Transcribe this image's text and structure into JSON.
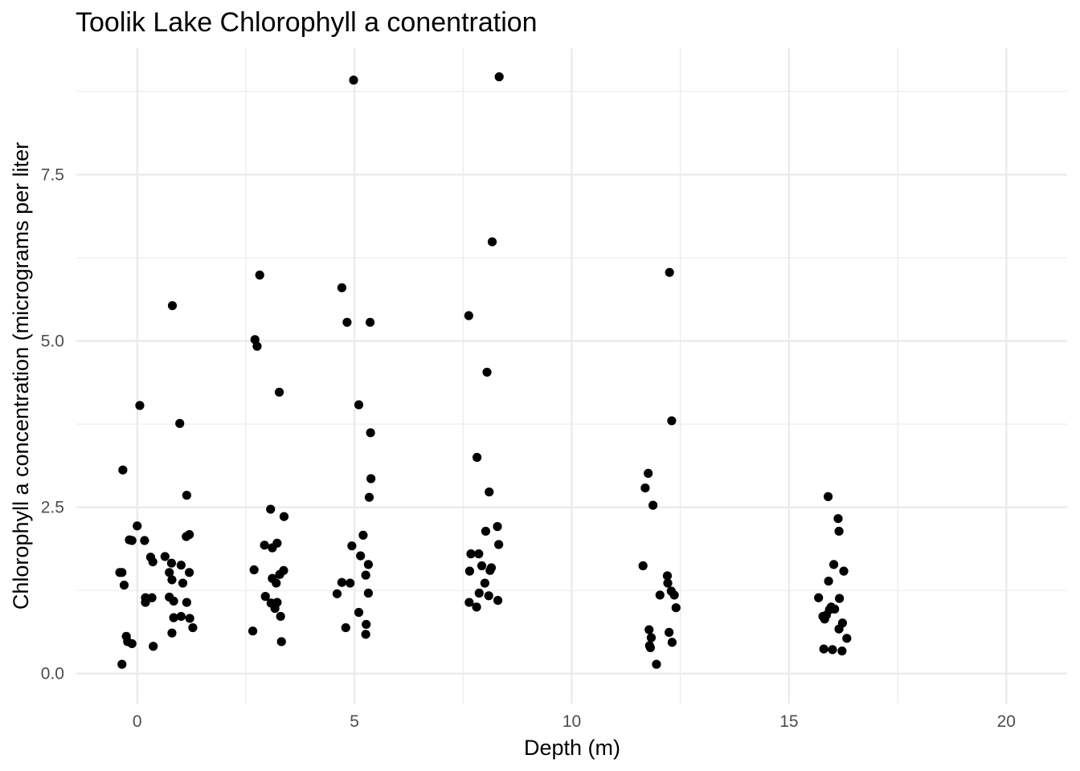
{
  "chart_data": {
    "type": "scatter",
    "title": "Toolik Lake Chlorophyll a conentration",
    "xlabel": "Depth (m)",
    "ylabel": "Chlorophyll a concentration (micrograms per liter",
    "xlim": [
      -1.4,
      21.4
    ],
    "ylim": [
      -0.45,
      9.4
    ],
    "x_ticks": [
      0,
      5,
      10,
      15,
      20
    ],
    "x_tick_labels": [
      "0",
      "5",
      "10",
      "15",
      "20"
    ],
    "y_ticks": [
      0,
      2.5,
      5,
      7.5
    ],
    "y_tick_labels": [
      "0.0",
      "2.5",
      "5.0",
      "7.5"
    ],
    "x_minor": [
      2.5,
      7.5,
      12.5,
      17.5
    ],
    "y_minor": [
      1.25,
      3.75,
      6.25,
      8.75
    ],
    "grid": true,
    "legend": "none",
    "point_color": "#000000",
    "grid_color": "#ebebeb",
    "points": [
      [
        -0.35,
        1.52
      ],
      [
        -0.3,
        1.33
      ],
      [
        -0.4,
        1.52
      ],
      [
        -0.33,
        3.06
      ],
      [
        -0.35,
        0.14
      ],
      [
        -0.25,
        0.56
      ],
      [
        -0.22,
        0.48
      ],
      [
        -0.18,
        2.01
      ],
      [
        -0.12,
        2.0
      ],
      [
        -0.12,
        0.45
      ],
      [
        0.0,
        2.22
      ],
      [
        0.06,
        4.03
      ],
      [
        0.17,
        2.0
      ],
      [
        0.19,
        1.14
      ],
      [
        0.19,
        1.07
      ],
      [
        0.31,
        1.75
      ],
      [
        0.34,
        1.14
      ],
      [
        0.36,
        1.68
      ],
      [
        0.37,
        0.41
      ],
      [
        0.64,
        1.76
      ],
      [
        0.74,
        1.15
      ],
      [
        0.74,
        1.52
      ],
      [
        0.79,
        1.66
      ],
      [
        0.8,
        1.41
      ],
      [
        0.8,
        0.61
      ],
      [
        0.81,
        5.53
      ],
      [
        0.84,
        0.84
      ],
      [
        0.84,
        1.09
      ],
      [
        0.98,
        3.76
      ],
      [
        1.01,
        0.86
      ],
      [
        1.01,
        1.63
      ],
      [
        1.05,
        1.36
      ],
      [
        1.13,
        2.06
      ],
      [
        1.14,
        2.68
      ],
      [
        1.14,
        1.07
      ],
      [
        1.2,
        2.09
      ],
      [
        1.2,
        1.52
      ],
      [
        1.21,
        0.83
      ],
      [
        1.28,
        0.69
      ],
      [
        2.66,
        0.64
      ],
      [
        2.69,
        1.56
      ],
      [
        2.71,
        5.02
      ],
      [
        2.76,
        4.92
      ],
      [
        2.82,
        5.99
      ],
      [
        2.93,
        1.93
      ],
      [
        2.95,
        1.16
      ],
      [
        3.07,
        2.47
      ],
      [
        3.08,
        1.06
      ],
      [
        3.11,
        1.89
      ],
      [
        3.11,
        1.43
      ],
      [
        3.17,
        0.98
      ],
      [
        3.2,
        1.36
      ],
      [
        3.22,
        1.96
      ],
      [
        3.22,
        1.07
      ],
      [
        3.27,
        4.23
      ],
      [
        3.28,
        1.49
      ],
      [
        3.3,
        0.86
      ],
      [
        3.32,
        0.48
      ],
      [
        3.37,
        1.55
      ],
      [
        3.38,
        2.36
      ],
      [
        4.6,
        1.2
      ],
      [
        4.71,
        1.37
      ],
      [
        4.71,
        5.8
      ],
      [
        4.8,
        0.69
      ],
      [
        4.83,
        5.28
      ],
      [
        4.9,
        1.36
      ],
      [
        4.94,
        1.92
      ],
      [
        4.98,
        8.92
      ],
      [
        5.1,
        0.92
      ],
      [
        5.1,
        4.04
      ],
      [
        5.14,
        1.77
      ],
      [
        5.2,
        2.08
      ],
      [
        5.26,
        1.48
      ],
      [
        5.26,
        0.59
      ],
      [
        5.27,
        0.74
      ],
      [
        5.32,
        1.64
      ],
      [
        5.32,
        1.21
      ],
      [
        5.34,
        2.65
      ],
      [
        5.36,
        5.28
      ],
      [
        5.37,
        3.62
      ],
      [
        5.38,
        2.93
      ],
      [
        7.63,
        5.38
      ],
      [
        7.64,
        1.07
      ],
      [
        7.65,
        1.54
      ],
      [
        7.68,
        1.8
      ],
      [
        7.81,
        1.0
      ],
      [
        7.82,
        3.25
      ],
      [
        7.86,
        1.8
      ],
      [
        7.87,
        1.21
      ],
      [
        7.93,
        1.62
      ],
      [
        8.0,
        1.36
      ],
      [
        8.02,
        2.14
      ],
      [
        8.05,
        4.53
      ],
      [
        8.09,
        1.17
      ],
      [
        8.1,
        2.73
      ],
      [
        8.12,
        1.55
      ],
      [
        8.15,
        1.59
      ],
      [
        8.17,
        6.49
      ],
      [
        8.29,
        2.21
      ],
      [
        8.3,
        1.1
      ],
      [
        8.32,
        1.94
      ],
      [
        8.33,
        8.97
      ],
      [
        11.64,
        1.62
      ],
      [
        11.69,
        2.79
      ],
      [
        11.76,
        3.01
      ],
      [
        11.78,
        0.66
      ],
      [
        11.79,
        0.42
      ],
      [
        11.81,
        0.39
      ],
      [
        11.83,
        0.54
      ],
      [
        11.87,
        2.53
      ],
      [
        11.95,
        0.14
      ],
      [
        12.03,
        1.18
      ],
      [
        12.2,
        1.47
      ],
      [
        12.21,
        1.36
      ],
      [
        12.24,
        0.62
      ],
      [
        12.25,
        6.03
      ],
      [
        12.29,
        1.24
      ],
      [
        12.3,
        3.8
      ],
      [
        12.31,
        0.47
      ],
      [
        12.36,
        1.18
      ],
      [
        12.4,
        0.99
      ],
      [
        15.68,
        1.14
      ],
      [
        15.78,
        0.86
      ],
      [
        15.8,
        0.37
      ],
      [
        15.82,
        0.82
      ],
      [
        15.86,
        0.88
      ],
      [
        15.9,
        2.66
      ],
      [
        15.91,
        1.39
      ],
      [
        15.93,
        0.96
      ],
      [
        15.97,
        1.0
      ],
      [
        16.0,
        0.36
      ],
      [
        16.03,
        1.64
      ],
      [
        16.05,
        0.97
      ],
      [
        16.13,
        2.33
      ],
      [
        16.15,
        0.67
      ],
      [
        16.15,
        2.14
      ],
      [
        16.16,
        1.13
      ],
      [
        16.22,
        0.34
      ],
      [
        16.23,
        0.76
      ],
      [
        16.26,
        1.54
      ],
      [
        16.33,
        0.53
      ]
    ]
  }
}
